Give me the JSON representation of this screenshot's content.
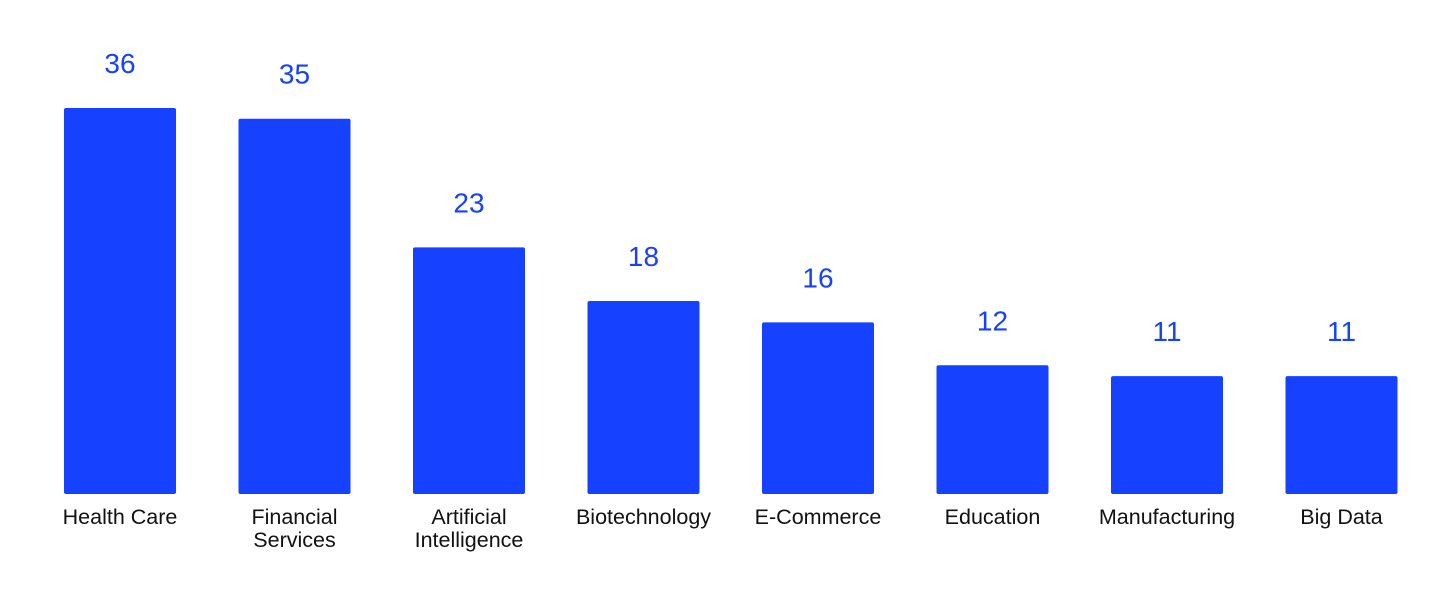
{
  "chart_data": {
    "type": "bar",
    "title": "",
    "xlabel": "",
    "ylabel": "",
    "categories": [
      "Health Care",
      "Financial Services",
      "Artificial Intelligence",
      "Biotechnology",
      "E-Commerce",
      "Education",
      "Manufacturing",
      "Big Data"
    ],
    "category_label_lines": [
      [
        "Health Care"
      ],
      [
        "Financial",
        "Services"
      ],
      [
        "Artificial",
        "Intelligence"
      ],
      [
        "Biotechnology"
      ],
      [
        "E-Commerce"
      ],
      [
        "Education"
      ],
      [
        "Manufacturing"
      ],
      [
        "Big Data"
      ]
    ],
    "values": [
      36,
      35,
      23,
      18,
      16,
      12,
      11,
      11
    ],
    "data_labels": [
      "36",
      "35",
      "23",
      "18",
      "16",
      "12",
      "11",
      "11"
    ],
    "ylim": [
      0,
      36
    ],
    "grid": false,
    "legend": "none",
    "colors": {
      "bar": "#1541FF",
      "value_label": "#1541FF",
      "category_label": "#111111"
    }
  }
}
